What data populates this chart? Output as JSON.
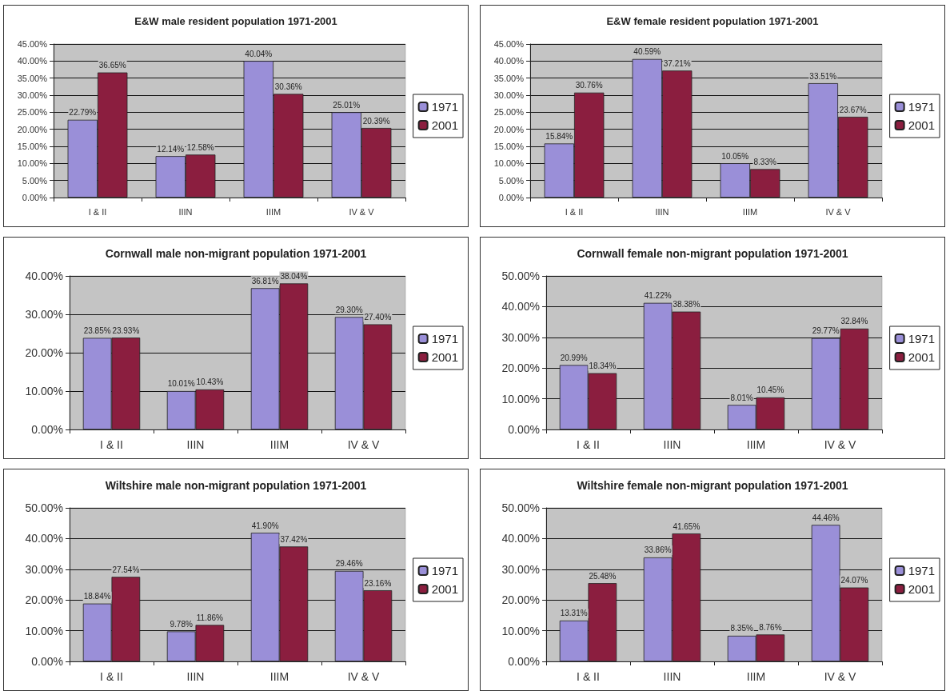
{
  "chart_data": [
    {
      "type": "bar",
      "title": "E&W male resident population 1971-2001",
      "categories": [
        "I & II",
        "IIIN",
        "IIIM",
        "IV & V"
      ],
      "series": [
        {
          "name": "1971",
          "color": "#9a8fd8",
          "values": [
            22.79,
            12.14,
            40.04,
            25.01
          ],
          "value_labels": [
            "22.79%",
            "12.14%",
            "40.04%",
            "25.01%"
          ]
        },
        {
          "name": "2001",
          "color": "#8b1e3f",
          "values": [
            36.65,
            12.58,
            30.36,
            20.39
          ],
          "value_labels": [
            "36.65%",
            "12.58%",
            "30.36%",
            "20.39%"
          ]
        }
      ],
      "ylim": [
        0,
        45
      ],
      "yticks": [
        {
          "value": 0,
          "label": "0.00%"
        },
        {
          "value": 5,
          "label": "5.00%"
        },
        {
          "value": 10,
          "label": "10.00%"
        },
        {
          "value": 15,
          "label": "15.00%"
        },
        {
          "value": 20,
          "label": "20.00%"
        },
        {
          "value": 25,
          "label": "25.00%"
        },
        {
          "value": 30,
          "label": "30.00%"
        },
        {
          "value": 35,
          "label": "35.00%"
        },
        {
          "value": 40,
          "label": "40.00%"
        },
        {
          "value": 45,
          "label": "45.00%"
        }
      ],
      "grid": "y",
      "legend": "right"
    },
    {
      "type": "bar",
      "title": "E&W female resident population 1971-2001",
      "categories": [
        "I & II",
        "IIIN",
        "IIIM",
        "IV & V"
      ],
      "series": [
        {
          "name": "1971",
          "color": "#9a8fd8",
          "values": [
            15.84,
            40.59,
            10.05,
            33.51
          ],
          "value_labels": [
            "15.84%",
            "40.59%",
            "10.05%",
            "33.51%"
          ]
        },
        {
          "name": "2001",
          "color": "#8b1e3f",
          "values": [
            30.76,
            37.21,
            8.33,
            23.67
          ],
          "value_labels": [
            "30.76%",
            "37.21%",
            "8.33%",
            "23.67%"
          ]
        }
      ],
      "ylim": [
        0,
        45
      ],
      "yticks": [
        {
          "value": 0,
          "label": "0.00%"
        },
        {
          "value": 5,
          "label": "5.00%"
        },
        {
          "value": 10,
          "label": "10.00%"
        },
        {
          "value": 15,
          "label": "15.00%"
        },
        {
          "value": 20,
          "label": "20.00%"
        },
        {
          "value": 25,
          "label": "25.00%"
        },
        {
          "value": 30,
          "label": "30.00%"
        },
        {
          "value": 35,
          "label": "35.00%"
        },
        {
          "value": 40,
          "label": "40.00%"
        },
        {
          "value": 45,
          "label": "45.00%"
        }
      ],
      "grid": "y",
      "legend": "right"
    },
    {
      "type": "bar",
      "title": "Cornwall male non-migrant population 1971-2001",
      "categories": [
        "I & II",
        "IIIN",
        "IIIM",
        "IV & V"
      ],
      "series": [
        {
          "name": "1971",
          "color": "#9a8fd8",
          "values": [
            23.85,
            10.01,
            36.81,
            29.3
          ],
          "value_labels": [
            "23.85%",
            "10.01%",
            "36.81%",
            "29.30%"
          ]
        },
        {
          "name": "2001",
          "color": "#8b1e3f",
          "values": [
            23.93,
            10.43,
            38.04,
            27.4
          ],
          "value_labels": [
            "23.93%",
            "10.43%",
            "38.04%",
            "27.40%"
          ]
        }
      ],
      "ylim": [
        0,
        40
      ],
      "yticks": [
        {
          "value": 0,
          "label": "0.00%"
        },
        {
          "value": 10,
          "label": "10.00%"
        },
        {
          "value": 20,
          "label": "20.00%"
        },
        {
          "value": 30,
          "label": "30.00%"
        },
        {
          "value": 40,
          "label": "40.00%"
        }
      ],
      "grid": "y",
      "legend": "right"
    },
    {
      "type": "bar",
      "title": "Cornwall female non-migrant population 1971-2001",
      "categories": [
        "I & II",
        "IIIN",
        "IIIM",
        "IV & V"
      ],
      "series": [
        {
          "name": "1971",
          "color": "#9a8fd8",
          "values": [
            20.99,
            41.22,
            8.01,
            29.77
          ],
          "value_labels": [
            "20.99%",
            "41.22%",
            "8.01%",
            "29.77%"
          ]
        },
        {
          "name": "2001",
          "color": "#8b1e3f",
          "values": [
            18.34,
            38.38,
            10.45,
            32.84
          ],
          "value_labels": [
            "18.34%",
            "38.38%",
            "10.45%",
            "32.84%"
          ]
        }
      ],
      "ylim": [
        0,
        50
      ],
      "yticks": [
        {
          "value": 0,
          "label": "0.00%"
        },
        {
          "value": 10,
          "label": "10.00%"
        },
        {
          "value": 20,
          "label": "20.00%"
        },
        {
          "value": 30,
          "label": "30.00%"
        },
        {
          "value": 40,
          "label": "40.00%"
        },
        {
          "value": 50,
          "label": "50.00%"
        }
      ],
      "grid": "y",
      "legend": "right"
    },
    {
      "type": "bar",
      "title": "Wiltshire male non-migrant population 1971-2001",
      "categories": [
        "I & II",
        "IIIN",
        "IIIM",
        "IV & V"
      ],
      "series": [
        {
          "name": "1971",
          "color": "#9a8fd8",
          "values": [
            18.84,
            9.78,
            41.9,
            29.46
          ],
          "value_labels": [
            "18.84%",
            "9.78%",
            "41.90%",
            "29.46%"
          ]
        },
        {
          "name": "2001",
          "color": "#8b1e3f",
          "values": [
            27.54,
            11.86,
            37.42,
            23.16
          ],
          "value_labels": [
            "27.54%",
            "11.86%",
            "37.42%",
            "23.16%"
          ]
        }
      ],
      "ylim": [
        0,
        50
      ],
      "yticks": [
        {
          "value": 0,
          "label": "0.00%"
        },
        {
          "value": 10,
          "label": "10.00%"
        },
        {
          "value": 20,
          "label": "20.00%"
        },
        {
          "value": 30,
          "label": "30.00%"
        },
        {
          "value": 40,
          "label": "40.00%"
        },
        {
          "value": 50,
          "label": "50.00%"
        }
      ],
      "grid": "y",
      "legend": "right"
    },
    {
      "type": "bar",
      "title": "Wiltshire female non-migrant population 1971-2001",
      "categories": [
        "I & II",
        "IIIN",
        "IIIM",
        "IV & V"
      ],
      "series": [
        {
          "name": "1971",
          "color": "#9a8fd8",
          "values": [
            13.31,
            33.86,
            8.35,
            44.46
          ],
          "value_labels": [
            "13.31%",
            "33.86%",
            "8.35%",
            "44.46%"
          ]
        },
        {
          "name": "2001",
          "color": "#8b1e3f",
          "values": [
            25.48,
            41.65,
            8.76,
            24.07
          ],
          "value_labels": [
            "25.48%",
            "41.65%",
            "8.76%",
            "24.07%"
          ]
        }
      ],
      "ylim": [
        0,
        50
      ],
      "yticks": [
        {
          "value": 0,
          "label": "0.00%"
        },
        {
          "value": 10,
          "label": "10.00%"
        },
        {
          "value": 20,
          "label": "20.00%"
        },
        {
          "value": 30,
          "label": "30.00%"
        },
        {
          "value": 40,
          "label": "40.00%"
        },
        {
          "value": 50,
          "label": "50.00%"
        }
      ],
      "grid": "y",
      "legend": "right"
    }
  ]
}
